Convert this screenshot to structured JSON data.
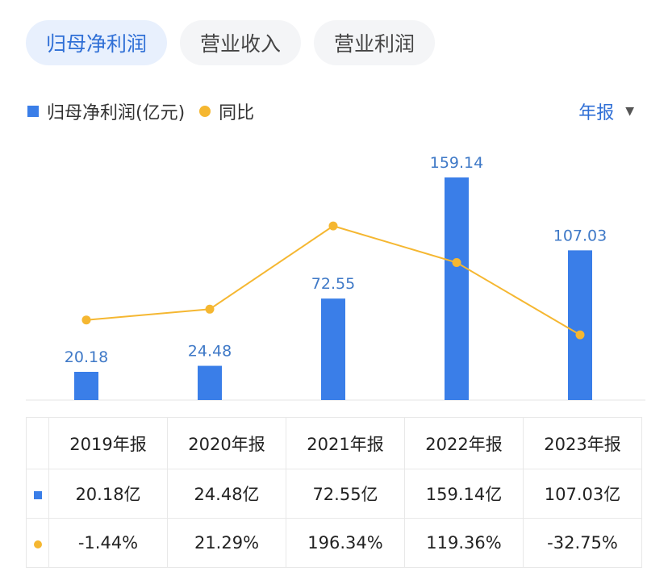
{
  "tabs": [
    {
      "label": "归母净利润",
      "active": true
    },
    {
      "label": "营业收入",
      "active": false
    },
    {
      "label": "营业利润",
      "active": false
    }
  ],
  "legend": {
    "bar_label": "归母净利润(亿元)",
    "line_label": "同比"
  },
  "period_selector": {
    "value": "年报",
    "icon": "caret-down-icon"
  },
  "colors": {
    "bar": "#3a7ee8",
    "line": "#f5b731",
    "positive": "#d8433f",
    "negative": "#2a9d6e",
    "accent": "#2f6fd6"
  },
  "chart_data": {
    "type": "bar",
    "categories": [
      "2019年报",
      "2020年报",
      "2021年报",
      "2022年报",
      "2023年报"
    ],
    "series": [
      {
        "name": "归母净利润(亿元)",
        "type": "bar",
        "values": [
          20.18,
          24.48,
          72.55,
          159.14,
          107.03
        ],
        "labels": [
          "20.18",
          "24.48",
          "72.55",
          "159.14",
          "107.03"
        ]
      },
      {
        "name": "同比",
        "type": "line",
        "values": [
          -1.44,
          21.29,
          196.34,
          119.36,
          -32.75
        ]
      }
    ],
    "grid": false
  },
  "table": {
    "headers": [
      "2019年报",
      "2020年报",
      "2021年报",
      "2022年报",
      "2023年报"
    ],
    "profit_row": [
      "20.18亿",
      "24.48亿",
      "72.55亿",
      "159.14亿",
      "107.03亿"
    ],
    "yoy_row": [
      "-1.44%",
      "21.29%",
      "196.34%",
      "119.36%",
      "-32.75%"
    ]
  }
}
